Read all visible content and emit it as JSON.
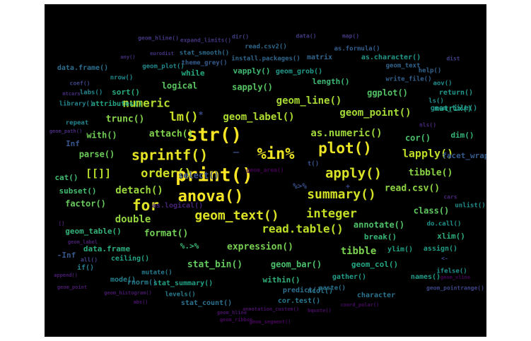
{
  "wordcloud": {
    "background": "#000000",
    "palette": "viridis",
    "words": [
      {
        "text": "print()",
        "rank": 1
      },
      {
        "text": "str()",
        "rank": 2
      },
      {
        "text": "anova()",
        "rank": 3
      },
      {
        "text": "%in%",
        "rank": 4
      },
      {
        "text": "plot()",
        "rank": 5
      },
      {
        "text": "sprintf()",
        "rank": 6
      },
      {
        "text": "for",
        "rank": 7
      },
      {
        "text": "geom_text()",
        "rank": 8
      },
      {
        "text": "apply()",
        "rank": 9
      },
      {
        "text": "summary()",
        "rank": 10
      },
      {
        "text": "order()",
        "rank": 11
      },
      {
        "text": "lm()",
        "rank": 12
      },
      {
        "text": "integer",
        "rank": 13
      },
      {
        "text": "lapply()",
        "rank": 14
      },
      {
        "text": "read.table()",
        "rank": 15
      },
      {
        "text": "[[]]",
        "rank": 16
      },
      {
        "text": "numeric",
        "rank": 17
      },
      {
        "text": "geom_label()",
        "rank": 18
      },
      {
        "text": "geom_line()",
        "rank": 19
      },
      {
        "text": "geom_point()",
        "rank": 20
      },
      {
        "text": "as.numeric()",
        "rank": 21
      },
      {
        "text": "detach()",
        "rank": 22
      },
      {
        "text": "double",
        "rank": 23
      },
      {
        "text": "read.csv()",
        "rank": 24
      },
      {
        "text": "tibble()",
        "rank": 25
      },
      {
        "text": "trunc()",
        "rank": 26
      },
      {
        "text": "attach()",
        "rank": 27
      },
      {
        "text": "tibble",
        "rank": 28
      },
      {
        "text": "expression()",
        "rank": 29
      },
      {
        "text": "format()",
        "rank": 30
      },
      {
        "text": "with()",
        "rank": 31
      },
      {
        "text": "parse()",
        "rank": 32
      },
      {
        "text": "factor()",
        "rank": 33
      },
      {
        "text": "stat_bin()",
        "rank": 34
      },
      {
        "text": "class()",
        "rank": 35
      },
      {
        "text": "logical",
        "rank": 36
      },
      {
        "text": "sapply()",
        "rank": 37
      },
      {
        "text": "ggplot()",
        "rank": 38
      },
      {
        "text": "annotate()",
        "rank": 39
      },
      {
        "text": "geom_bar()",
        "rank": 40
      },
      {
        "text": "cor()",
        "rank": 41
      },
      {
        "text": "subset()",
        "rank": 42
      },
      {
        "text": "cat()",
        "rank": 43
      },
      {
        "text": "vapply()",
        "rank": 44
      },
      {
        "text": "length()",
        "rank": 45
      },
      {
        "text": "%.>%",
        "rank": 46
      },
      {
        "text": "break()",
        "rank": 47
      },
      {
        "text": "dim()",
        "rank": 48
      },
      {
        "text": "geom_table()",
        "rank": 49
      },
      {
        "text": "within()",
        "rank": 50
      },
      {
        "text": "xlim()",
        "rank": 51
      },
      {
        "text": "data.frame",
        "rank": 52
      },
      {
        "text": "sort()",
        "rank": 53
      },
      {
        "text": "while",
        "rank": 54
      },
      {
        "text": "geom_col()",
        "rank": 55
      },
      {
        "text": "matrix()",
        "rank": 56
      },
      {
        "text": "attributes()",
        "rank": 57
      },
      {
        "text": "ceiling()",
        "rank": 58
      },
      {
        "text": "stat_summary()",
        "rank": 59
      },
      {
        "text": "ylim()",
        "rank": 60
      },
      {
        "text": "assign()",
        "rank": 61
      },
      {
        "text": "gather()",
        "rank": 62
      },
      {
        "text": "names()",
        "rank": 63
      },
      {
        "text": "geom_grob()",
        "rank": 64
      },
      {
        "text": "as.character()",
        "rank": 65
      },
      {
        "text": "return()",
        "rank": 66
      },
      {
        "text": "geom_tile()",
        "rank": 67
      },
      {
        "text": "do.call()",
        "rank": 68
      },
      {
        "text": "ifelse()",
        "rank": 69
      },
      {
        "text": "unlist()",
        "rank": 70
      },
      {
        "text": "ls()",
        "rank": 71
      },
      {
        "text": "aov()",
        "rank": 72
      },
      {
        "text": "nrow()",
        "rank": 73
      },
      {
        "text": "geom_plot()",
        "rank": 74
      },
      {
        "text": "labs()",
        "rank": 75
      },
      {
        "text": "library()",
        "rank": 76
      },
      {
        "text": "repeat",
        "rank": 77
      },
      {
        "text": "if()",
        "rank": 78
      },
      {
        "text": "mode()",
        "rank": 79
      },
      {
        "text": "rnorm()",
        "rank": 80
      },
      {
        "text": "levels()",
        "rank": 81
      },
      {
        "text": "mutate()",
        "rank": 82
      },
      {
        "text": "cor.test()",
        "rank": 83
      },
      {
        "text": "ncol()",
        "rank": 84
      },
      {
        "text": "paste()",
        "rank": 85
      },
      {
        "text": "character",
        "rank": 86
      },
      {
        "text": "stat_count()",
        "rank": 87
      },
      {
        "text": "predict()",
        "rank": 88
      },
      {
        "text": "data.frame()",
        "rank": 89
      },
      {
        "text": "stat_smooth()",
        "rank": 90
      },
      {
        "text": "read.csv2()",
        "rank": 91
      },
      {
        "text": "install.packages()",
        "rank": 92
      },
      {
        "text": "matrix",
        "rank": 93
      },
      {
        "text": "geom_text",
        "rank": 94
      },
      {
        "text": "help()",
        "rank": 95
      },
      {
        "text": "write_file()",
        "rank": 96
      },
      {
        "text": "as.formula()",
        "rank": 97
      },
      {
        "text": "theme_grey()",
        "rank": 98
      },
      {
        "text": "facet_wrap()",
        "rank": 99
      },
      {
        "text": "Inf",
        "rank": 100
      },
      {
        "text": "-Inf",
        "rank": 101
      },
      {
        "text": "t()",
        "rank": 102
      },
      {
        "text": "select()",
        "rank": 103
      },
      {
        "text": "%>%",
        "rank": 104
      },
      {
        "text": "_",
        "rank": 105
      },
      {
        "text": "*",
        "rank": 106
      },
      {
        "text": "+",
        "rank": 107
      },
      {
        "text": "<-",
        "rank": 108
      },
      {
        "text": "geom_pointrange()",
        "rank": 109
      },
      {
        "text": "coef()",
        "rank": 110
      },
      {
        "text": "all()",
        "rank": 111
      },
      {
        "text": "dist",
        "rank": 112
      },
      {
        "text": "dir()",
        "rank": 113
      },
      {
        "text": "data()",
        "rank": 114
      },
      {
        "text": "map()",
        "rank": 115
      },
      {
        "text": "geom_hline()",
        "rank": 116
      },
      {
        "text": "expand_limits()",
        "rank": 117
      },
      {
        "text": "eurodist",
        "rank": 118
      },
      {
        "text": "any()",
        "rank": 119
      },
      {
        "text": "mtcars",
        "rank": 120
      },
      {
        "text": "geom_path()",
        "rank": 121
      },
      {
        "text": "nls()",
        "rank": 122
      },
      {
        "text": "cars",
        "rank": 123
      },
      {
        "text": "as.logical()",
        "rank": 124
      },
      {
        "text": "[]",
        "rank": 125
      },
      {
        "text": "geom_label",
        "rank": 126
      },
      {
        "text": "append()",
        "rank": 127
      },
      {
        "text": "geom_point",
        "rank": 128
      },
      {
        "text": "geom_histogram()",
        "rank": 129
      },
      {
        "text": "abs()",
        "rank": 130
      },
      {
        "text": "geom_hline",
        "rank": 131
      },
      {
        "text": "annotation_custom()",
        "rank": 132
      },
      {
        "text": "bquote()",
        "rank": 133
      },
      {
        "text": "coord_polar()",
        "rank": 134
      },
      {
        "text": "geom_ribbon",
        "rank": 135
      },
      {
        "text": "geom_segment()",
        "rank": 136
      },
      {
        "text": "geom_vline",
        "rank": 137
      },
      {
        "text": "geom_area()",
        "rank": 138
      }
    ]
  }
}
